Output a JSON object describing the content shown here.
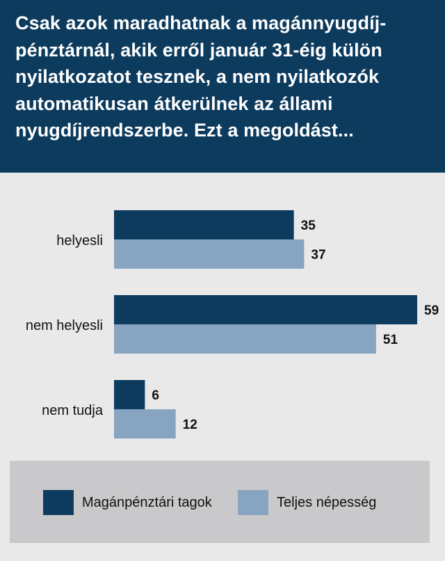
{
  "header": {
    "title": "Csak azok maradhatnak a magánnyugdíj-pénztárnál, akik erről január 31-éig külön nyilatkozatot tesznek, a nem nyilatkozók automatikusan átkerülnek az állami nyugdíjrendszerbe. Ezt a megoldást..."
  },
  "colors": {
    "series1": "#0d3b5e",
    "series2": "#87a5c0",
    "header_bg": "#0d3b5e",
    "background": "#e9e9ea"
  },
  "chart_data": {
    "type": "bar",
    "orientation": "horizontal",
    "categories": [
      "helyesli",
      "nem helyesli",
      "nem tudja"
    ],
    "series": [
      {
        "name": "Magánpénztári tagok",
        "values": [
          35,
          59,
          6
        ],
        "color": "#0d3b5e"
      },
      {
        "name": "Teljes népesség",
        "values": [
          37,
          51,
          12
        ],
        "color": "#87a5c0"
      }
    ],
    "xlim": [
      0,
      60
    ],
    "grid": false,
    "legend_position": "bottom"
  },
  "legend": {
    "items": [
      {
        "label": "Magánpénztári tagok",
        "color": "#0d3b5e"
      },
      {
        "label": "Teljes népesség",
        "color": "#87a5c0"
      }
    ]
  }
}
